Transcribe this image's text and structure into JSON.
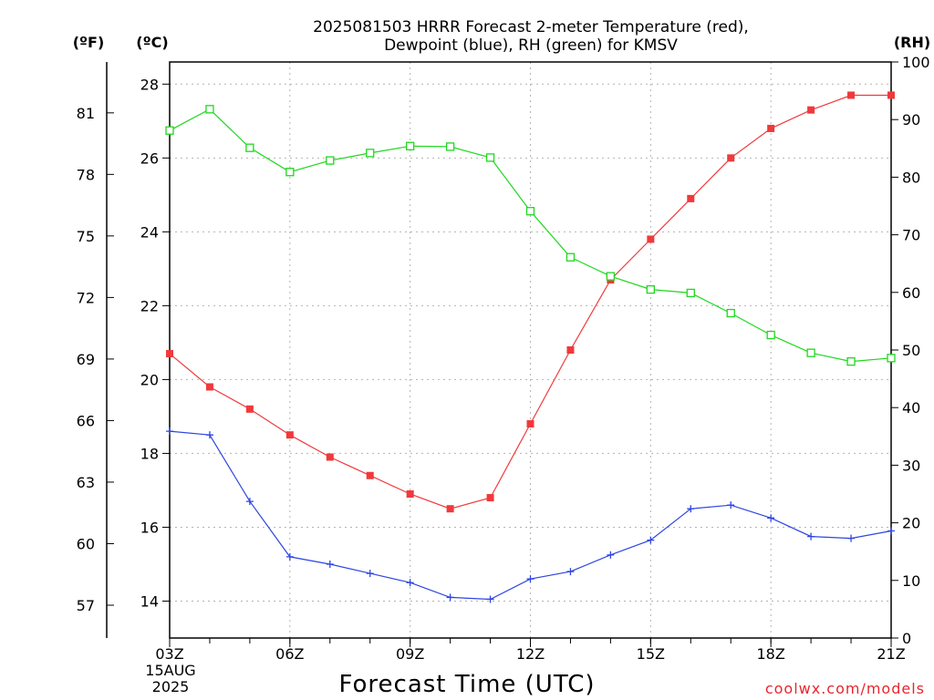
{
  "chart_data": {
    "type": "line",
    "title": [
      "2025081503 HRRR Forecast 2-meter Temperature (red),",
      "Dewpoint (blue), RH (green) for KMSV"
    ],
    "xlabel": "Forecast Time (UTC)",
    "date_label": [
      "15AUG",
      "2025"
    ],
    "x_tick_labels": [
      "03Z",
      "06Z",
      "09Z",
      "12Z",
      "15Z",
      "18Z",
      "21Z"
    ],
    "x_hours": [
      3,
      4,
      5,
      6,
      7,
      8,
      9,
      10,
      11,
      12,
      13,
      14,
      15,
      16,
      17,
      18,
      19,
      20,
      21
    ],
    "xlim": [
      3,
      21
    ],
    "left_axis_f": {
      "unit_label": "(ºF)",
      "ticks": [
        "57",
        "60",
        "63",
        "66",
        "69",
        "72",
        "75",
        "78",
        "81"
      ]
    },
    "left_axis_c": {
      "unit_label": "(ºC)",
      "ticks": [
        "14",
        "16",
        "18",
        "20",
        "22",
        "24",
        "26",
        "28"
      ],
      "ylim": [
        13,
        28.6
      ]
    },
    "right_axis": {
      "unit_label": "(RH)",
      "ticks": [
        "0",
        "10",
        "20",
        "30",
        "40",
        "50",
        "60",
        "70",
        "80",
        "90",
        "100"
      ],
      "ylim": [
        0,
        100
      ]
    },
    "grid": true,
    "series": [
      {
        "label_word": "red",
        "axis": "celsius",
        "color": "#f0393c",
        "marker": "filled-square",
        "values": [
          20.7,
          19.8,
          19.2,
          18.5,
          17.9,
          17.4,
          16.9,
          16.5,
          16.8,
          18.8,
          20.8,
          22.7,
          23.8,
          24.9,
          26.0,
          26.8,
          27.3,
          27.7,
          27.7
        ]
      },
      {
        "label_word": "blue",
        "axis": "celsius",
        "color": "#2e45e0",
        "marker": "plus",
        "values": [
          18.6,
          18.5,
          16.7,
          15.2,
          15.0,
          14.75,
          14.5,
          14.1,
          14.05,
          14.6,
          14.8,
          15.25,
          15.65,
          16.5,
          16.6,
          16.25,
          15.75,
          15.7,
          15.9
        ]
      },
      {
        "label_word": "green",
        "axis": "rh",
        "color": "#1ed81e",
        "marker": "open-square",
        "values": [
          88.1,
          91.8,
          85.1,
          80.9,
          82.9,
          84.2,
          85.4,
          85.3,
          83.4,
          74.1,
          66.1,
          62.8,
          60.5,
          59.9,
          56.4,
          52.6,
          49.5,
          48.0,
          48.6
        ]
      }
    ]
  },
  "credit": "coolwx.com/models"
}
